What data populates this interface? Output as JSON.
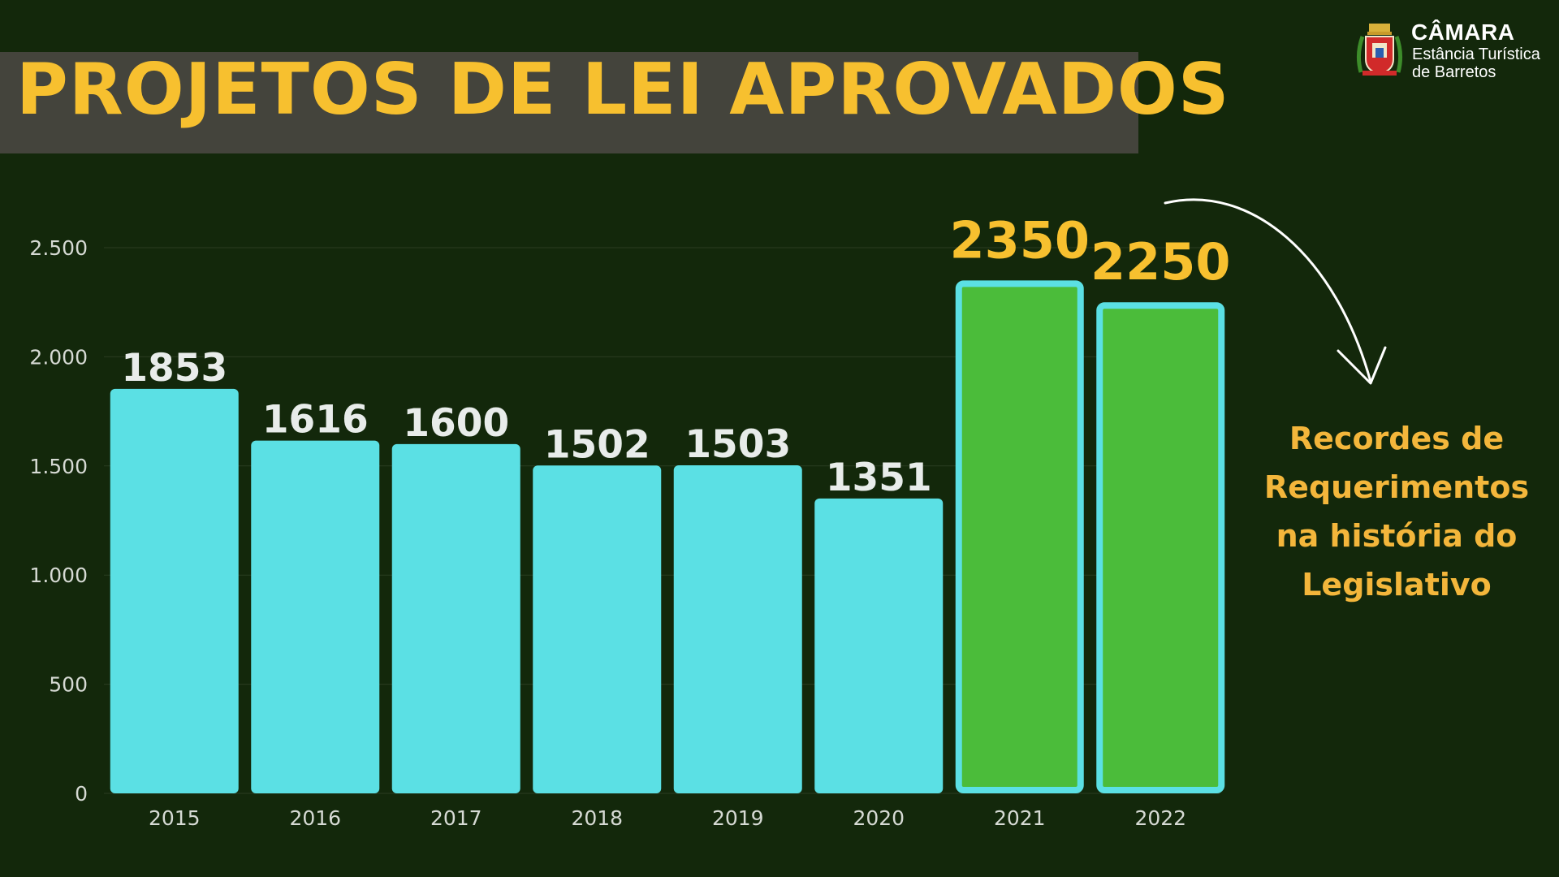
{
  "title": "PROJETOS DE LEI APROVADOS",
  "logo": {
    "name": "CÂMARA",
    "subtitle_line1": "Estância Turística",
    "subtitle_line2": "de Barretos"
  },
  "annotation": {
    "lines": [
      "Recordes de",
      "Requerimentos",
      "na história do",
      "Legislativo"
    ]
  },
  "colors": {
    "background": "#13280b",
    "title_band": "#44443c",
    "title_text": "#f7c02f",
    "bar_normal": "#5be0e4",
    "bar_record": "#4bbc3a",
    "bar_record_border": "#5be0e4",
    "label_normal": "#e8ecea",
    "label_record": "#f7c02f",
    "annotation": "#f3b63b"
  },
  "chart_data": {
    "type": "bar",
    "title": "PROJETOS DE LEI APROVADOS",
    "xlabel": "",
    "ylabel": "",
    "categories": [
      "2015",
      "2016",
      "2017",
      "2018",
      "2019",
      "2020",
      "2021",
      "2022"
    ],
    "values": [
      1853,
      1616,
      1600,
      1502,
      1503,
      1351,
      2350,
      2250
    ],
    "value_labels": [
      "1853",
      "1616",
      "1600",
      "1502",
      "1503",
      "1351",
      "2350",
      "2250"
    ],
    "highlighted": [
      "2021",
      "2022"
    ],
    "ylim": [
      0,
      2500
    ],
    "yticks": [
      0,
      500,
      1000,
      1500,
      2000,
      2500
    ],
    "ytick_labels": [
      "0",
      "500",
      "1.000",
      "1.500",
      "2.000",
      "2.500"
    ],
    "grid": true,
    "legend": "none"
  }
}
